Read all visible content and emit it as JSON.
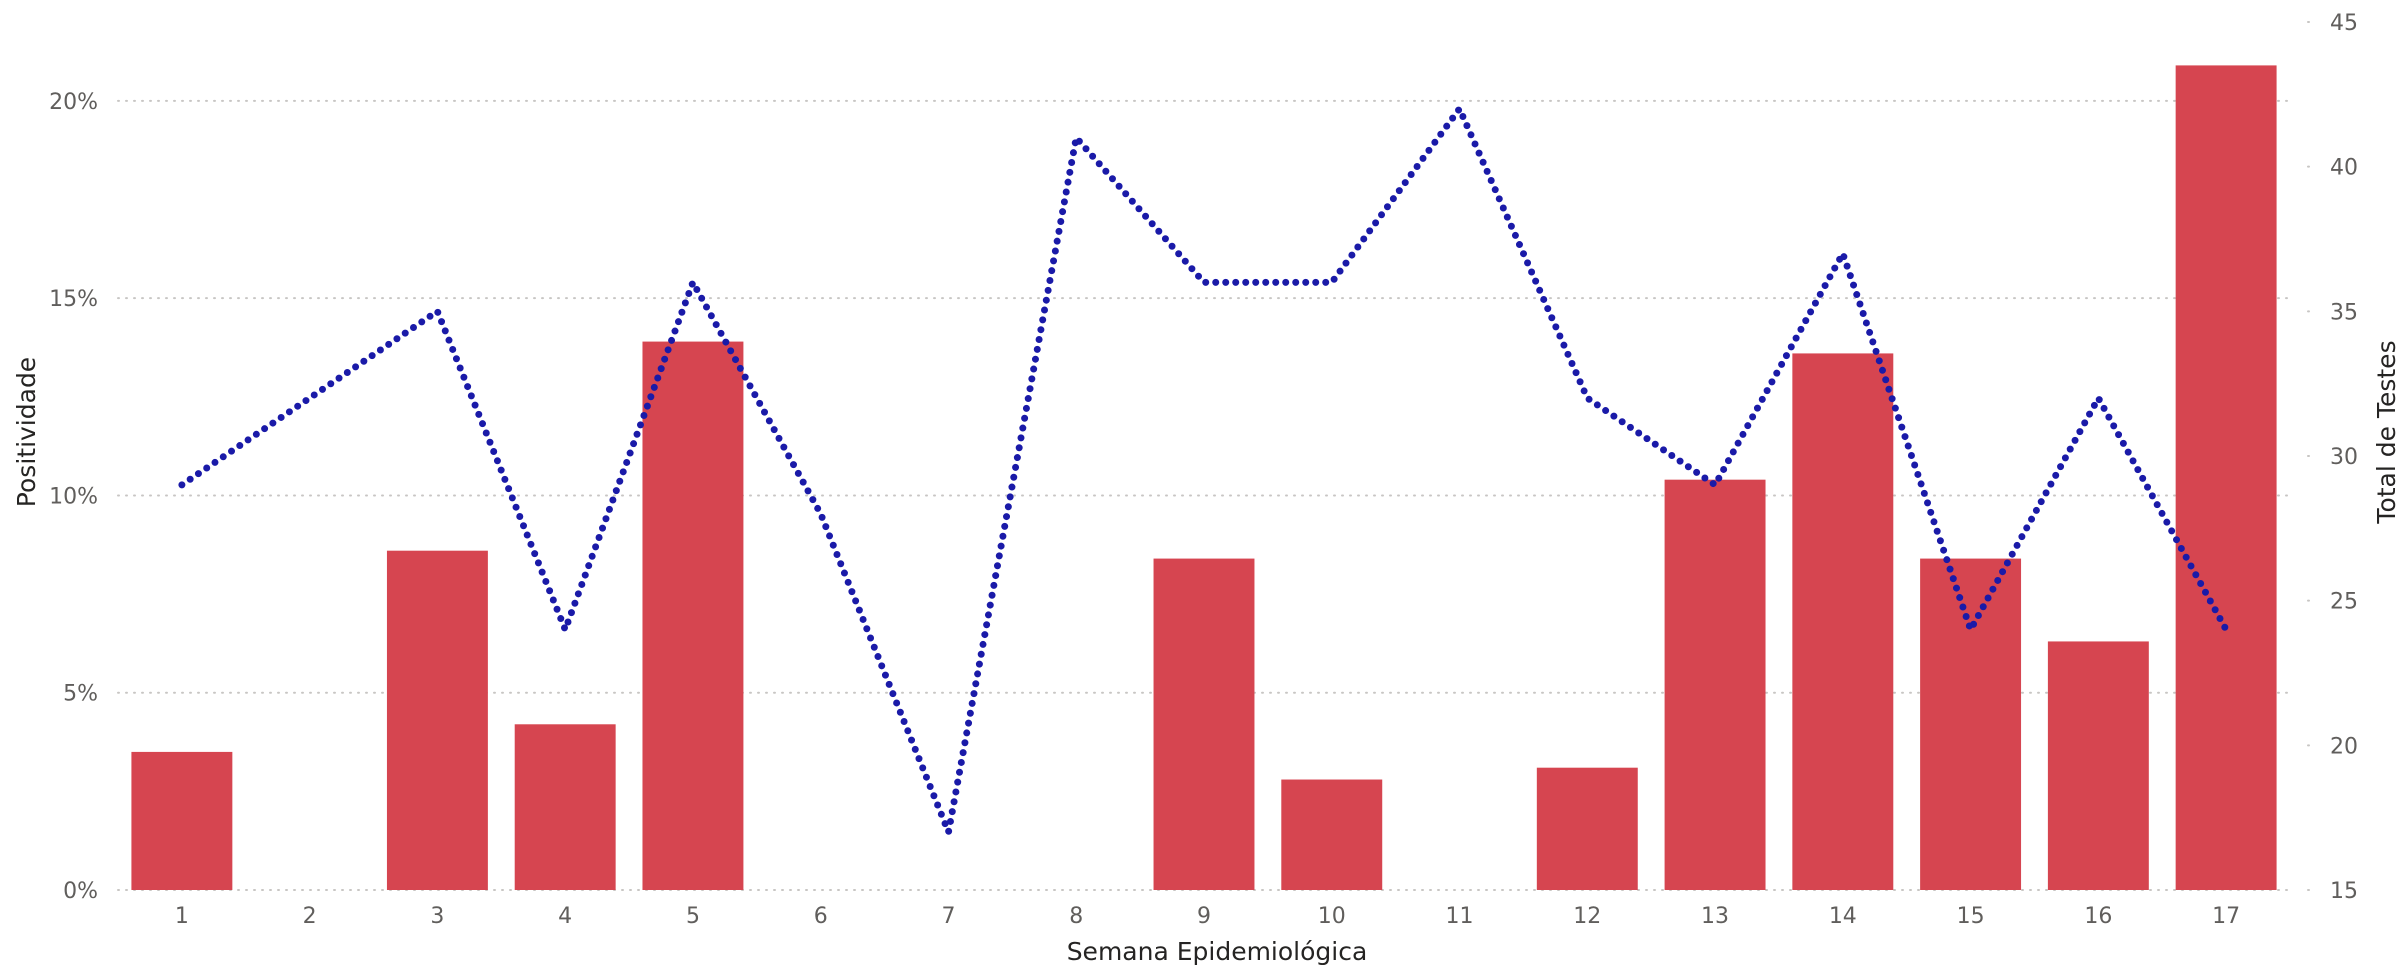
{
  "chart_data": {
    "type": "bar",
    "combo": "bar-line",
    "x_label": "Semana Epidemiológica",
    "categories": [
      "1",
      "2",
      "3",
      "4",
      "5",
      "6",
      "7",
      "8",
      "9",
      "10",
      "11",
      "12",
      "13",
      "14",
      "15",
      "16",
      "17"
    ],
    "y_left": {
      "label": "Positividade",
      "min": 0,
      "max": 0.22,
      "ticks": [
        0,
        0.05,
        0.1,
        0.15,
        0.2
      ],
      "tick_labels": [
        "0%",
        "5%",
        "10%",
        "15%",
        "20%"
      ]
    },
    "y_right": {
      "label": "Total de Testes",
      "min": 15,
      "max": 45,
      "ticks": [
        15,
        20,
        25,
        30,
        35,
        40,
        45
      ],
      "tick_labels": [
        "15",
        "20",
        "25",
        "30",
        "35",
        "40",
        "45"
      ]
    },
    "series": [
      {
        "type": "bar",
        "axis": "left",
        "color": "#d64550",
        "values": [
          0.035,
          0,
          0.086,
          0.042,
          0.139,
          0,
          0,
          0,
          0.084,
          0.028,
          0,
          0.031,
          0.104,
          0.136,
          0.084,
          0.063,
          0.209
        ]
      },
      {
        "type": "line",
        "axis": "right",
        "style": "dotted",
        "color": "#1a1aa8",
        "values": [
          29,
          32,
          35,
          24,
          36,
          28,
          17,
          41,
          36,
          36,
          42,
          32,
          29,
          37,
          24,
          32,
          24
        ]
      }
    ],
    "grid": true,
    "legend": "none"
  }
}
